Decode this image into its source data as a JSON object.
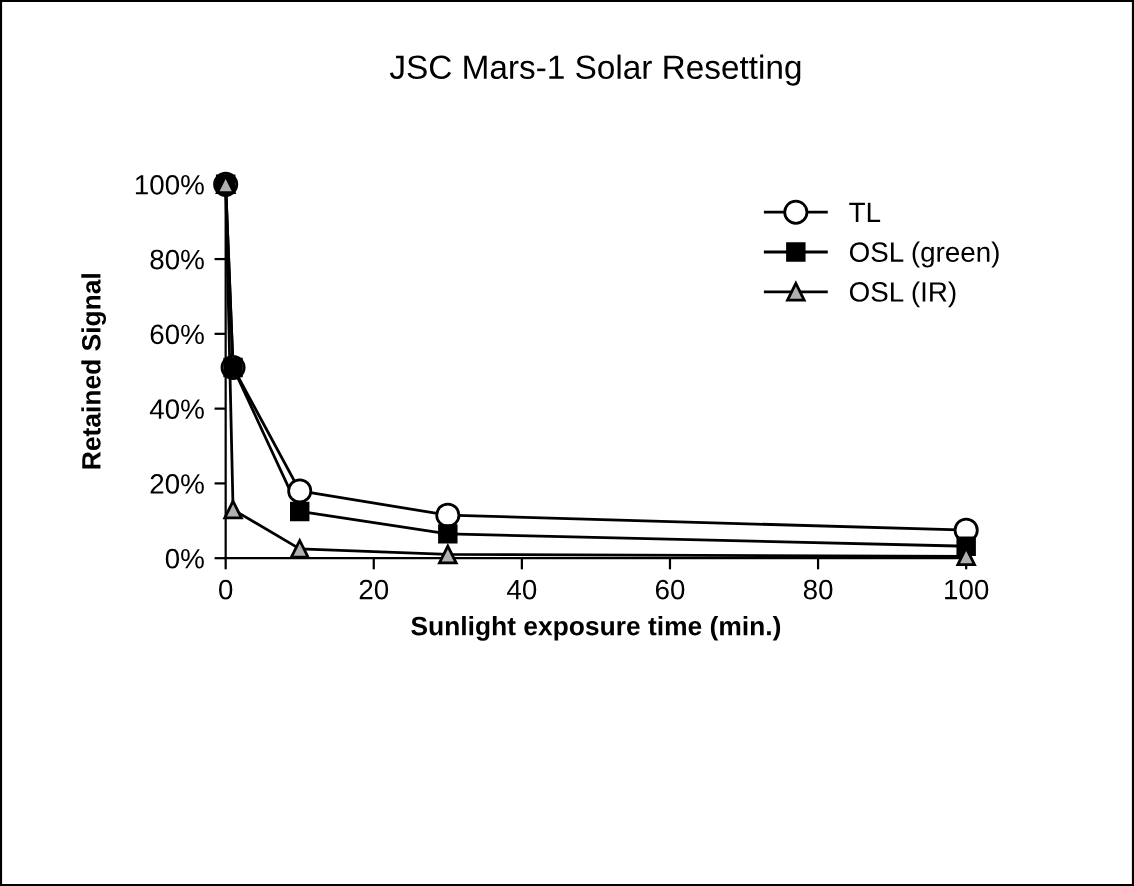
{
  "chart_data": {
    "type": "line",
    "title": "JSC Mars-1 Solar Resetting",
    "xlabel": "Sunlight exposure time (min.)",
    "ylabel": "Retained Signal",
    "x": [
      0,
      1,
      10,
      30,
      100
    ],
    "series": [
      {
        "name": "TL",
        "color": "#ffffff",
        "marker": "circle",
        "values": [
          100,
          51,
          18,
          11.5,
          7.5
        ]
      },
      {
        "name": "OSL (green)",
        "color": "#000000",
        "marker": "square",
        "values": [
          100,
          51,
          12.5,
          6.5,
          3.2
        ]
      },
      {
        "name": "OSL (IR)",
        "color": "#b0b0b0",
        "marker": "triangle",
        "values": [
          100,
          13,
          2.5,
          1,
          0.5
        ]
      }
    ],
    "xlim": [
      0,
      100
    ],
    "xticks": [
      0,
      20,
      40,
      60,
      80,
      100
    ],
    "ylim": [
      0,
      100
    ],
    "yticks": [
      {
        "value": 0,
        "label": "0%"
      },
      {
        "value": 20,
        "label": "20%"
      },
      {
        "value": 40,
        "label": "40%"
      },
      {
        "value": 60,
        "label": "60%"
      },
      {
        "value": 80,
        "label": "80%"
      },
      {
        "value": 100,
        "label": "100%"
      }
    ],
    "grid": false,
    "legend": "top right",
    "line_style": "solid"
  }
}
